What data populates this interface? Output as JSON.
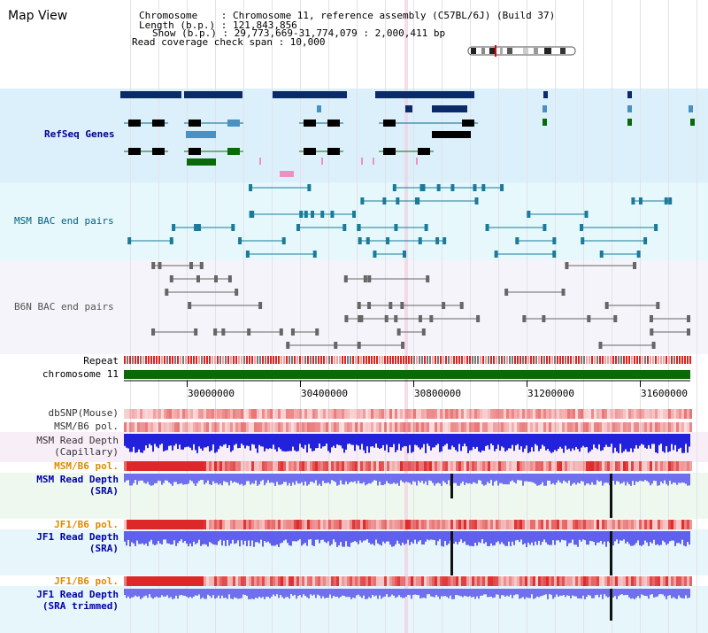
{
  "title": "Map View",
  "info": {
    "chromosome": "Chromosome    : Chromosome 11, reference assembly (C57BL/6J) (Build 37)",
    "length": "Length (b.p.) : 121,843,856",
    "show": "Show (b.p.) : 29,773,669-31,774,079 : 2,000,411 bp",
    "span": "Read coverage check span : 10,000"
  },
  "tracks": {
    "refseq": "RefSeq Genes",
    "msm_bac": "MSM BAC end pairs",
    "b6n_bac": "B6N BAC end pairs",
    "repeat": "Repeat",
    "chromosome": "chromosome 11",
    "dbsnp": "dbSNP(Mouse)",
    "msm_b6_pol_1": "MSM/B6 pol.",
    "msm_depth_cap_1": "MSM Read Depth",
    "msm_depth_cap_2": "(Capillary)",
    "msm_b6_pol_2": "MSM/B6 pol.",
    "msm_depth_sra_1": "MSM Read Depth",
    "msm_depth_sra_2": "(SRA)",
    "jf1_b6_pol_1": "JF1/B6 pol.",
    "jf1_depth_sra_1": "JF1 Read Depth",
    "jf1_depth_sra_2": "(SRA)",
    "jf1_b6_pol_2": "JF1/B6 pol.",
    "jf1_depth_trim_1": "JF1 Read Depth",
    "jf1_depth_trim_2": "(SRA trimmed)"
  },
  "axis": {
    "ticks": [
      "30000000",
      "30400000",
      "30800000",
      "31200000",
      "31600000"
    ]
  },
  "colors": {
    "refseq_label": "#00008b",
    "msm_label": "#006080",
    "b6n_label": "#555555",
    "pol_label": "#e08a00",
    "depth_label": "#0000aa",
    "gene_dark": "#0a2a6a",
    "gene_light": "#4a90c0",
    "gene_green": "#0a6a0a",
    "chromosome_bar": "#0a6a0a"
  }
}
